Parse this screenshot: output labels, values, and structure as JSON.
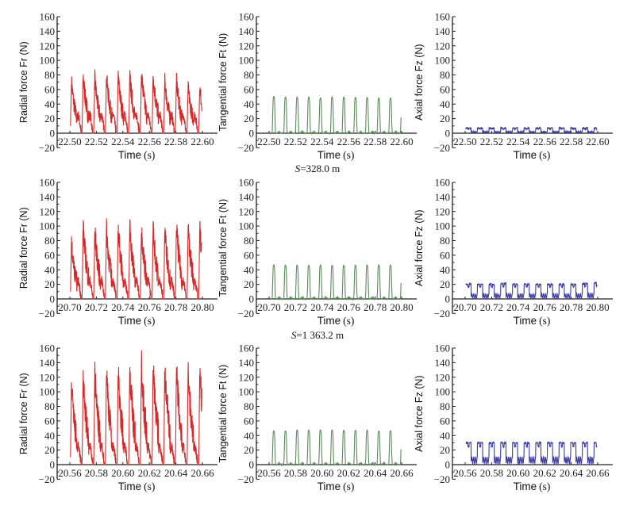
{
  "annotations": [
    {
      "var": "S",
      "text": "=328.0 m"
    },
    {
      "var": "S",
      "text": "=1 363.2 m"
    }
  ],
  "chart_data": [
    {
      "type": "line",
      "row": 1,
      "col": 1,
      "ylabel": "Radial force Fr (N)",
      "xlabel": "Time",
      "xunit": "(s)",
      "xlim": [
        22.5,
        22.6
      ],
      "xticks": [
        "22.50",
        "22.52",
        "22.54",
        "22.56",
        "22.58",
        "22.60"
      ],
      "ylim": [
        -20,
        160
      ],
      "yticks": [
        "160",
        "140",
        "120",
        "100",
        "80",
        "60",
        "40",
        "20",
        "0",
        "−20"
      ],
      "color": "#d42a2a",
      "waveform": "radial",
      "peaks": [
        71,
        79,
        76,
        79,
        79,
        78,
        83,
        82,
        73,
        73,
        63
      ]
    },
    {
      "type": "line",
      "row": 1,
      "col": 2,
      "ylabel": "Tangential force Ft (N)",
      "xlabel": "Time",
      "xunit": "(s)",
      "xlim": [
        22.5,
        22.6
      ],
      "xticks": [
        "22.50",
        "22.52",
        "22.54",
        "22.56",
        "22.58",
        "22.60"
      ],
      "ylim": [
        -20,
        160
      ],
      "yticks": [
        "160",
        "140",
        "120",
        "100",
        "80",
        "60",
        "40",
        "20",
        "0",
        "−20"
      ],
      "color": "#5c8a5c",
      "waveform": "tangential",
      "peaks": [
        50,
        49,
        49,
        49,
        48,
        49,
        49,
        49,
        49,
        48,
        48
      ]
    },
    {
      "type": "line",
      "row": 1,
      "col": 3,
      "ylabel": "Axial force Fz (N)",
      "xlabel": "Time",
      "xunit": "(s)",
      "xlim": [
        22.5,
        22.6
      ],
      "xticks": [
        "22.50",
        "22.52",
        "22.54",
        "22.56",
        "22.58",
        "22.60"
      ],
      "ylim": [
        -20,
        160
      ],
      "yticks": [
        "160",
        "140",
        "120",
        "100",
        "80",
        "60",
        "40",
        "20",
        "0",
        "−20"
      ],
      "color": "#3a3aa0",
      "waveform": "axial",
      "peaks": [
        7,
        7,
        7,
        7,
        7,
        7,
        7,
        7,
        7,
        7,
        7
      ]
    },
    {
      "type": "line",
      "row": 2,
      "col": 1,
      "ylabel": "Radial force Fr (N)",
      "xlabel": "Time",
      "xunit": "(s)",
      "xlim": [
        20.7,
        20.8
      ],
      "xticks": [
        "20.70",
        "20.72",
        "20.74",
        "20.76",
        "20.78",
        "20.80"
      ],
      "ylim": [
        -20,
        160
      ],
      "yticks": [
        "160",
        "140",
        "120",
        "100",
        "80",
        "60",
        "40",
        "20",
        "0",
        "−20"
      ],
      "color": "#d42a2a",
      "waveform": "radial",
      "peaks": [
        76,
        100,
        94,
        96,
        98,
        100,
        96,
        98,
        96,
        100,
        96
      ]
    },
    {
      "type": "line",
      "row": 2,
      "col": 2,
      "ylabel": "Tangential force Ft (N)",
      "xlabel": "Time",
      "xunit": "(s)",
      "xlim": [
        20.7,
        20.8
      ],
      "xticks": [
        "20.70",
        "20.72",
        "20.74",
        "20.76",
        "20.78",
        "20.80"
      ],
      "ylim": [
        -20,
        160
      ],
      "yticks": [
        "160",
        "140",
        "120",
        "100",
        "80",
        "60",
        "40",
        "20",
        "0",
        "−20"
      ],
      "color": "#5c8a5c",
      "waveform": "tangential",
      "peaks": [
        46,
        46,
        46,
        46,
        46,
        46,
        46,
        46,
        46,
        46,
        46
      ]
    },
    {
      "type": "line",
      "row": 2,
      "col": 3,
      "ylabel": "Axial force Fz (N)",
      "xlabel": "Time",
      "xunit": "(s)",
      "xlim": [
        20.7,
        20.8
      ],
      "xticks": [
        "20.70",
        "20.72",
        "20.74",
        "20.76",
        "20.78",
        "20.80"
      ],
      "ylim": [
        -20,
        160
      ],
      "yticks": [
        "160",
        "140",
        "120",
        "100",
        "80",
        "60",
        "40",
        "20",
        "0",
        "−20"
      ],
      "color": "#3a3aa0",
      "waveform": "axial",
      "peaks": [
        20,
        20,
        20,
        21,
        20,
        20,
        20,
        20,
        20,
        20,
        21,
        22
      ]
    },
    {
      "type": "line",
      "row": 3,
      "col": 1,
      "ylabel": "Radial force Fr (N)",
      "xlabel": "Time",
      "xunit": "(s)",
      "xlim": [
        20.56,
        20.66
      ],
      "xticks": [
        "20.56",
        "20.58",
        "20.60",
        "20.62",
        "20.64",
        "20.66"
      ],
      "ylim": [
        -20,
        160
      ],
      "yticks": [
        "160",
        "140",
        "120",
        "100",
        "80",
        "60",
        "40",
        "20",
        "0",
        "−20"
      ],
      "color": "#d42a2a",
      "waveform": "radial",
      "peaks": [
        110,
        118,
        125,
        130,
        130,
        134,
        136,
        138,
        136,
        132,
        130
      ]
    },
    {
      "type": "line",
      "row": 3,
      "col": 2,
      "ylabel": "Tangential force Ft (N)",
      "xlabel": "Time",
      "xunit": "(s)",
      "xlim": [
        20.56,
        20.66
      ],
      "xticks": [
        "20.56",
        "20.58",
        "20.60",
        "20.62",
        "20.64",
        "20.66"
      ],
      "ylim": [
        -20,
        160
      ],
      "yticks": [
        "160",
        "140",
        "120",
        "100",
        "80",
        "60",
        "40",
        "20",
        "0",
        "−20"
      ],
      "color": "#5c8a5c",
      "waveform": "tangential",
      "peaks": [
        46,
        46,
        47,
        47,
        47,
        47,
        47,
        47,
        47,
        46,
        46
      ]
    },
    {
      "type": "line",
      "row": 3,
      "col": 3,
      "ylabel": "Axial force Fz (N)",
      "xlabel": "Time",
      "xunit": "(s)",
      "xlim": [
        20.56,
        20.66
      ],
      "xticks": [
        "20.56",
        "20.58",
        "20.60",
        "20.62",
        "20.64",
        "20.66"
      ],
      "ylim": [
        -20,
        160
      ],
      "yticks": [
        "160",
        "140",
        "120",
        "100",
        "80",
        "60",
        "40",
        "20",
        "0",
        "−20"
      ],
      "color": "#3a3aa0",
      "waveform": "axial",
      "peaks": [
        30,
        30,
        30,
        30,
        30,
        30,
        30,
        30,
        30,
        30,
        30
      ]
    }
  ]
}
